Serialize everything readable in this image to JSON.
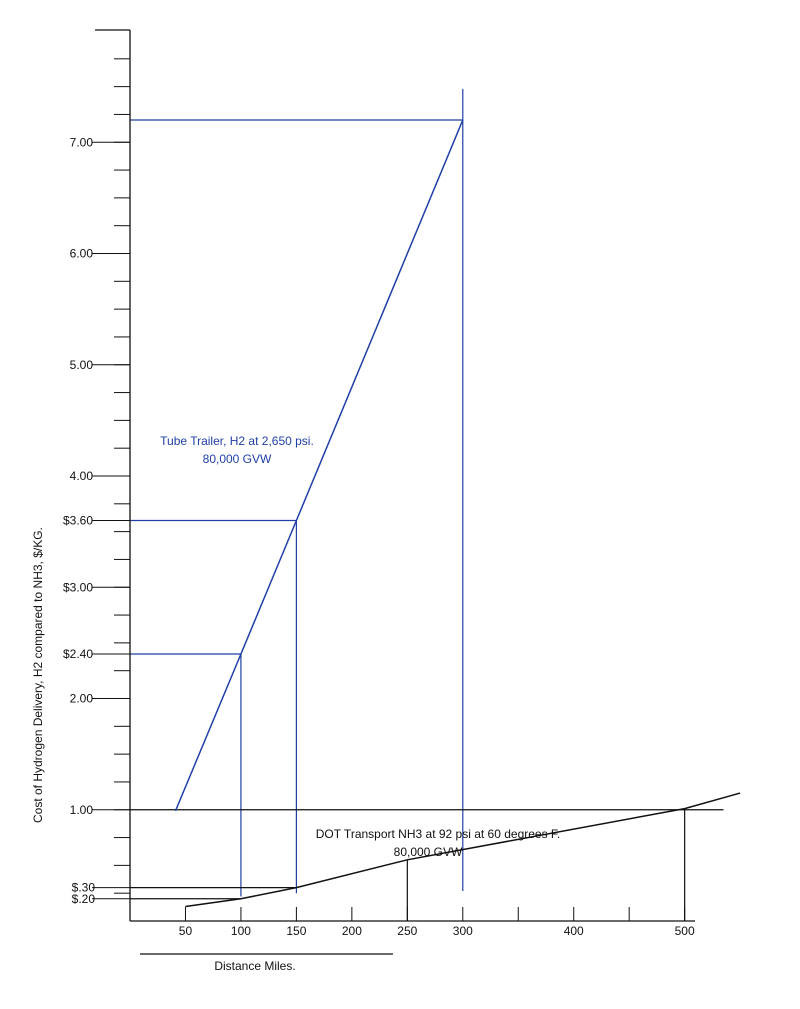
{
  "chart_data": {
    "type": "line",
    "title": "",
    "xlabel": "Distance Miles.",
    "ylabel": "Cost of Hydrogen Delivery, H2 compared to NH3, $/KG.",
    "xlim": [
      0,
      550
    ],
    "ylim": [
      0,
      8
    ],
    "grid": false,
    "legend": "none",
    "colors": {
      "tube": "#1f3fa6",
      "dot": "#111111",
      "axis": "#111111"
    },
    "x_ticks": [
      {
        "value": 50,
        "label": "50"
      },
      {
        "value": 100,
        "label": "100"
      },
      {
        "value": 150,
        "label": "150"
      },
      {
        "value": 200,
        "label": "200"
      },
      {
        "value": 250,
        "label": "250"
      },
      {
        "value": 300,
        "label": "300"
      },
      {
        "value": 400,
        "label": "400"
      },
      {
        "value": 500,
        "label": "500"
      }
    ],
    "x_minor_ticks": [
      350,
      450
    ],
    "y_ticks": [
      {
        "value": 7.0,
        "label": "7.00"
      },
      {
        "value": 6.0,
        "label": "6.00"
      },
      {
        "value": 5.0,
        "label": "5.00"
      },
      {
        "value": 4.0,
        "label": "4.00"
      },
      {
        "value": 3.6,
        "label": "$3.60"
      },
      {
        "value": 3.0,
        "label": "$3.00"
      },
      {
        "value": 2.4,
        "label": "$2.40"
      },
      {
        "value": 2.0,
        "label": "2.00"
      },
      {
        "value": 1.0,
        "label": "1.00"
      },
      {
        "value": 0.3,
        "label": "$.30"
      },
      {
        "value": 0.2,
        "label": "$.20"
      }
    ],
    "series": [
      {
        "name": "Tube Trailer, H2 at 2,650 psi.",
        "sublabel": "80,000 GVW",
        "color": "#1f3fa6",
        "x": [
          41,
          100,
          150,
          300
        ],
        "y": [
          0.99,
          2.4,
          3.6,
          7.2
        ]
      },
      {
        "name": "DOT Transport NH3 at 92 psi at 60 degrees F.",
        "sublabel": "80,000 GVW",
        "color": "#111111",
        "x": [
          50,
          100,
          150,
          250,
          500,
          550
        ],
        "y": [
          0.13,
          0.2,
          0.3,
          0.55,
          1.01,
          1.15
        ]
      }
    ],
    "reference_lines": {
      "blue_horizontal": [
        {
          "y": 7.2,
          "x_to": 300
        },
        {
          "y": 3.6,
          "x_to": 150
        },
        {
          "y": 2.4,
          "x_to": 100
        }
      ],
      "blue_vertical": [
        {
          "x": 100,
          "y_from": 0.22,
          "y_to": 2.4
        },
        {
          "x": 150,
          "y_from": 0.25,
          "y_to": 3.6
        },
        {
          "x": 300,
          "y_from": 0.27,
          "y_to": 7.48
        }
      ],
      "black_horizontal": [
        {
          "y": 1.0,
          "x_to": 535
        },
        {
          "y": 0.3,
          "x_to": 150
        },
        {
          "y": 0.2,
          "x_to": 100
        }
      ],
      "black_vertical": [
        {
          "x": 250,
          "y_from": 0.0,
          "y_to": 0.55
        },
        {
          "x": 500,
          "y_from": 0.0,
          "y_to": 1.01
        }
      ]
    }
  }
}
